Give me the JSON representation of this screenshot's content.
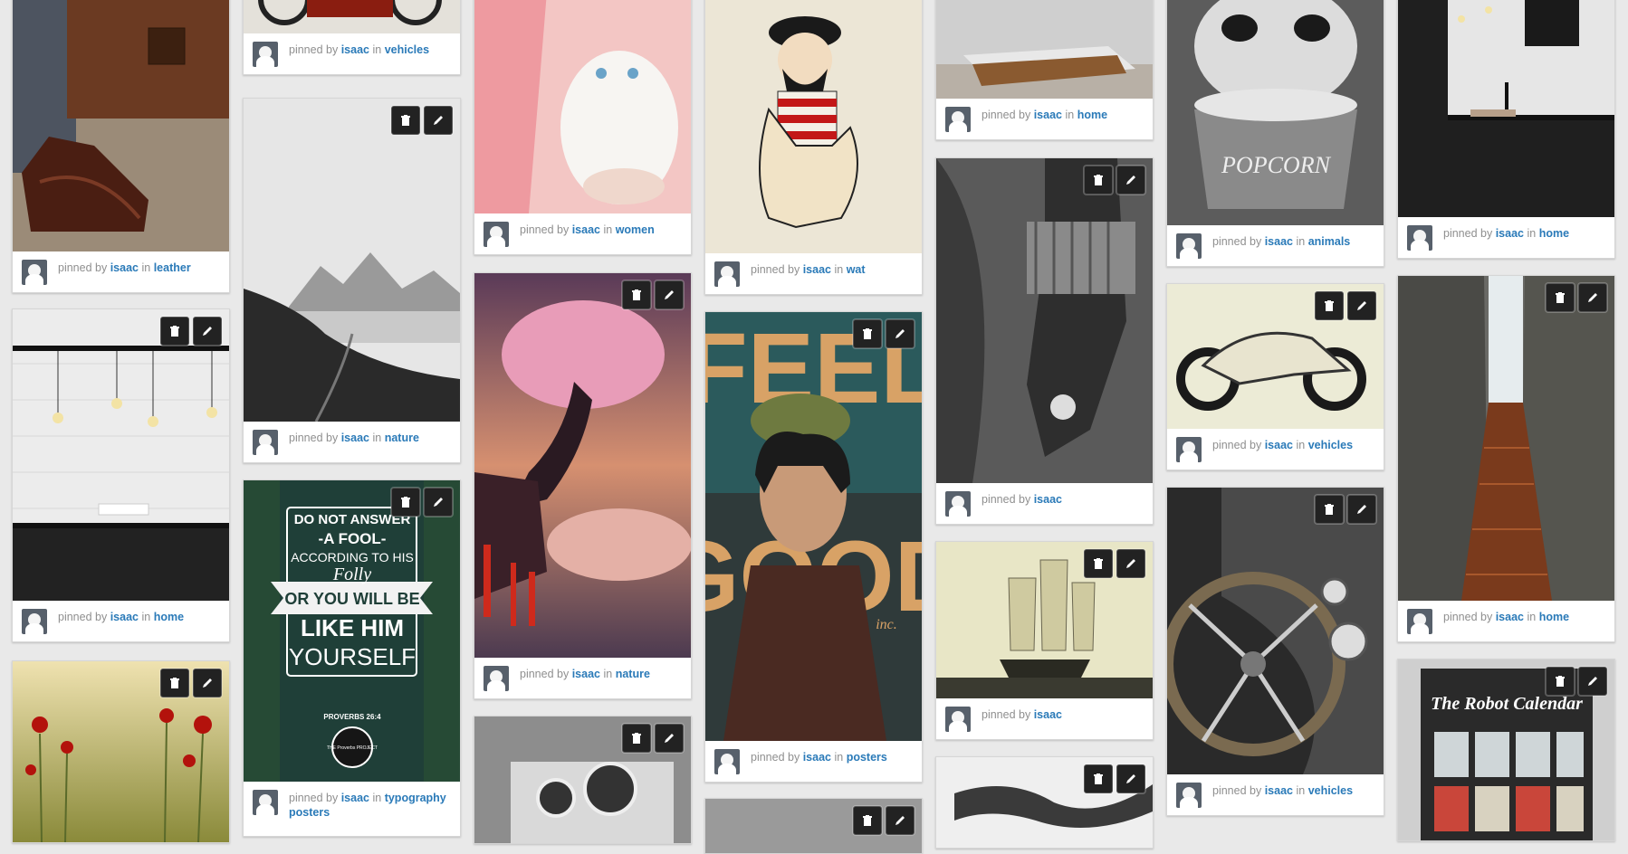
{
  "pin_meta": {
    "pinned_by": "pinned by",
    "in": "in"
  },
  "user": "isaac",
  "icons": {
    "delete": "trash-icon",
    "edit": "pencil-icon",
    "avatar": "user-avatar"
  },
  "boards": {
    "leather": "leather",
    "vehicles": "vehicles",
    "nature": "nature",
    "women": "women",
    "wat": "wat",
    "home": "home",
    "animals": "animals",
    "posters": "posters",
    "typography_posters": "typography posters"
  },
  "image_text": {
    "poster_quote": [
      "DO NOT ANSWER",
      "-A FOOL-",
      "ACCORDING TO HIS",
      "Folly",
      "OR YOU WILL BE",
      "LIKE HIM",
      "YOURSELF"
    ],
    "poster_ref": "PROVERBS 26:4",
    "poster_seal": "THE Proverbs PROJECT",
    "feel_good": [
      "FEEL",
      "GOOD",
      "inc."
    ],
    "popcorn": "POPCORN",
    "robot_calendar": "The Robot Calendar"
  }
}
